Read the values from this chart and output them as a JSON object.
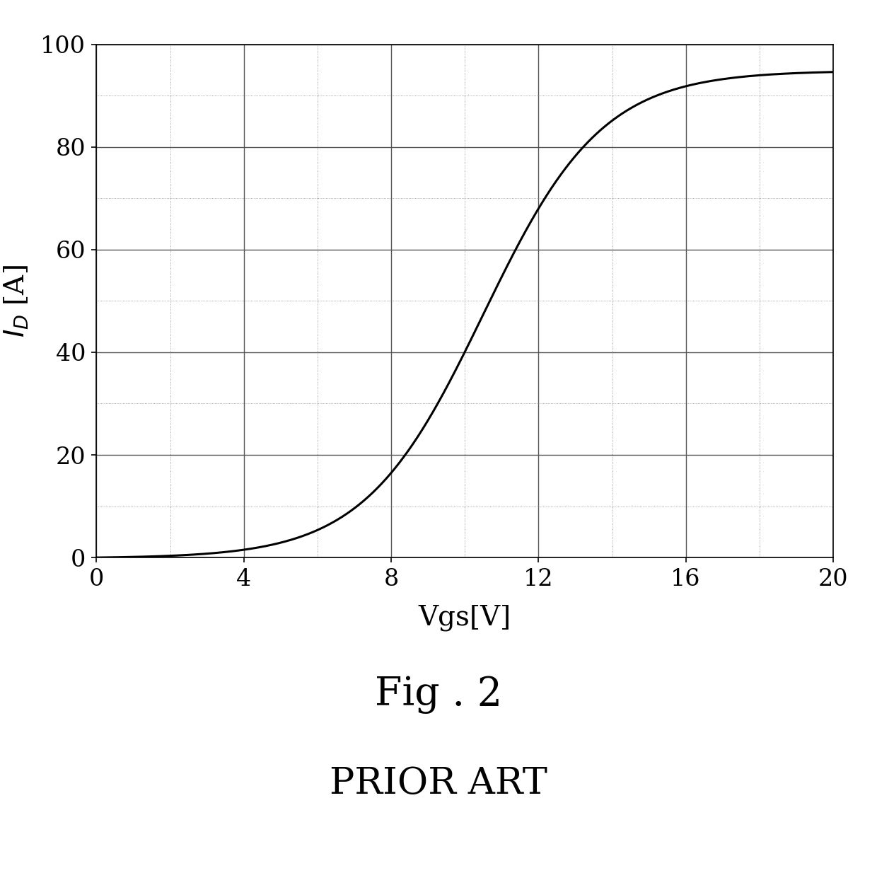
{
  "xlabel": "Vgs[V]",
  "title1": "Fig . 2",
  "title2": "PRIOR ART",
  "xlim": [
    0,
    20
  ],
  "ylim": [
    0,
    100
  ],
  "xticks": [
    0,
    4,
    8,
    12,
    16,
    20
  ],
  "yticks": [
    0,
    20,
    40,
    60,
    80,
    100
  ],
  "line_color": "#000000",
  "background_color": "#ffffff",
  "major_grid_color": "#555555",
  "minor_grid_color": "#888888",
  "curve_midpoint": 10.5,
  "curve_steepness": 0.62,
  "curve_max": 95.0
}
